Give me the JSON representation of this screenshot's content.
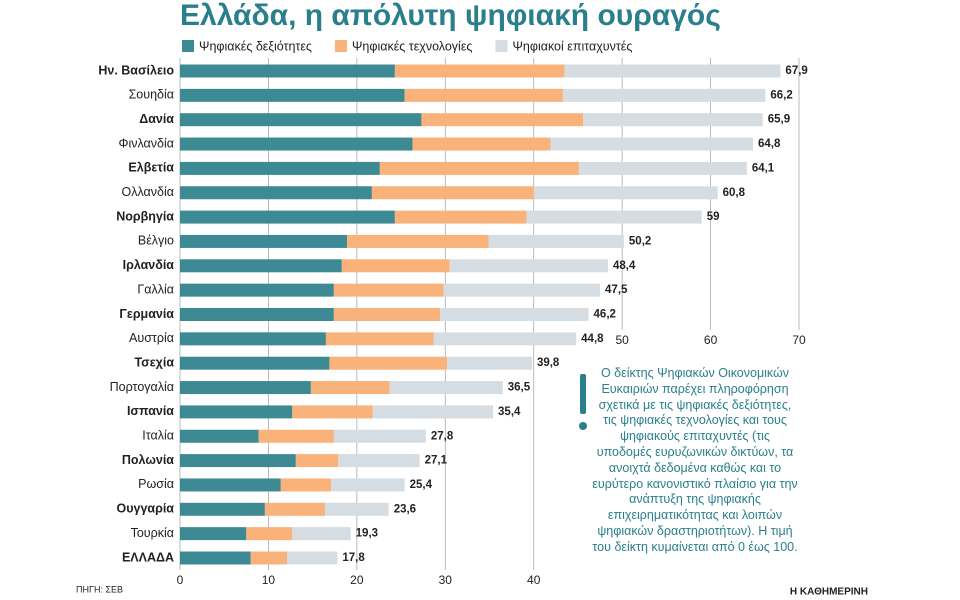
{
  "chart_data": {
    "type": "stacked-bar-horizontal",
    "title": "Ελλάδα, η απόλυτη ψηφιακή ουραγός",
    "categories": [
      "Ην. Βασίλειο",
      "Σουηδία",
      "Δανία",
      "Φινλανδία",
      "Ελβετία",
      "Ολλανδία",
      "Νορβηγία",
      "Βέλγιο",
      "Ιρλανδία",
      "Γαλλία",
      "Γερμανία",
      "Αυστρία",
      "Τσεχία",
      "Πορτογαλία",
      "Ισπανία",
      "Ιταλία",
      "Πολωνία",
      "Ρωσία",
      "Ουγγαρία",
      "Τουρκία",
      "ΕΛΛΑΔΑ"
    ],
    "series": [
      {
        "name": "Ψηφιακές δεξιότητες",
        "color": "#3d8a94",
        "values": [
          24.3,
          25.4,
          27.3,
          26.3,
          22.6,
          21.7,
          24.3,
          18.9,
          18.3,
          17.4,
          17.4,
          16.5,
          16.9,
          14.8,
          12.7,
          8.9,
          13.1,
          11.4,
          9.6,
          7.5,
          8.0
        ]
      },
      {
        "name": "Ψηφιακές τεχνολογίες",
        "color": "#f9b27a",
        "values": [
          19.2,
          17.9,
          18.3,
          15.6,
          22.5,
          18.3,
          14.9,
          16.0,
          12.2,
          12.4,
          12.0,
          12.2,
          13.3,
          8.9,
          9.1,
          8.5,
          4.8,
          5.7,
          6.8,
          5.2,
          4.1
        ]
      },
      {
        "name": "Ψηφιακοί επιταχυντές",
        "color": "#d5dde2",
        "values": [
          24.4,
          22.9,
          20.3,
          22.9,
          19.0,
          20.8,
          19.8,
          15.3,
          17.9,
          17.7,
          16.8,
          16.1,
          9.6,
          12.8,
          13.6,
          10.4,
          9.2,
          8.3,
          7.2,
          6.6,
          5.7
        ]
      }
    ],
    "totals": {
      "values": [
        67.9,
        66.2,
        65.9,
        64.8,
        64.1,
        60.8,
        59,
        50.2,
        48.4,
        47.5,
        46.2,
        44.8,
        39.8,
        36.5,
        35.4,
        27.8,
        27.1,
        25.4,
        23.6,
        19.3,
        17.8
      ],
      "value_labels": [
        "67,9",
        "66,2",
        "65,9",
        "64,8",
        "64,1",
        "60,8",
        "59",
        "50,2",
        "48,4",
        "47,5",
        "46,2",
        "44,8",
        "39,8",
        "36,5",
        "35,4",
        "27,8",
        "27,1",
        "25,4",
        "23,6",
        "19,3",
        "17,8"
      ]
    },
    "xlim": [
      0,
      70
    ],
    "xticks": [
      0,
      10,
      20,
      30,
      40,
      50,
      60,
      70
    ],
    "grid": true,
    "note": "Ο δείκτης Ψηφιακών Οικονομικών Ευκαιριών παρέχει πληροφόρηση σχετικά με τις ψηφιακές δεξιότητες, τις ψηφιακές τεχνολογίες και τους ψηφιακούς επιταχυντές (τις υποδομές ευρυζωνικών δικτύων, τα ανοιχτά δεδομένα καθώς και το ευρύτερο κανονιστικό πλαίσιο για την ανάπτυξη της ψηφιακής επιχειρηματικότητας και λοιπών ψηφιακών δραστηριοτήτων). Η τιμή του δείκτη κυμαίνεται από 0 έως 100.",
    "source": "ΠΗΓΗ: ΣΕΒ",
    "credit": "Η ΚΑΘΗΜΕΡΙΝΗ"
  }
}
